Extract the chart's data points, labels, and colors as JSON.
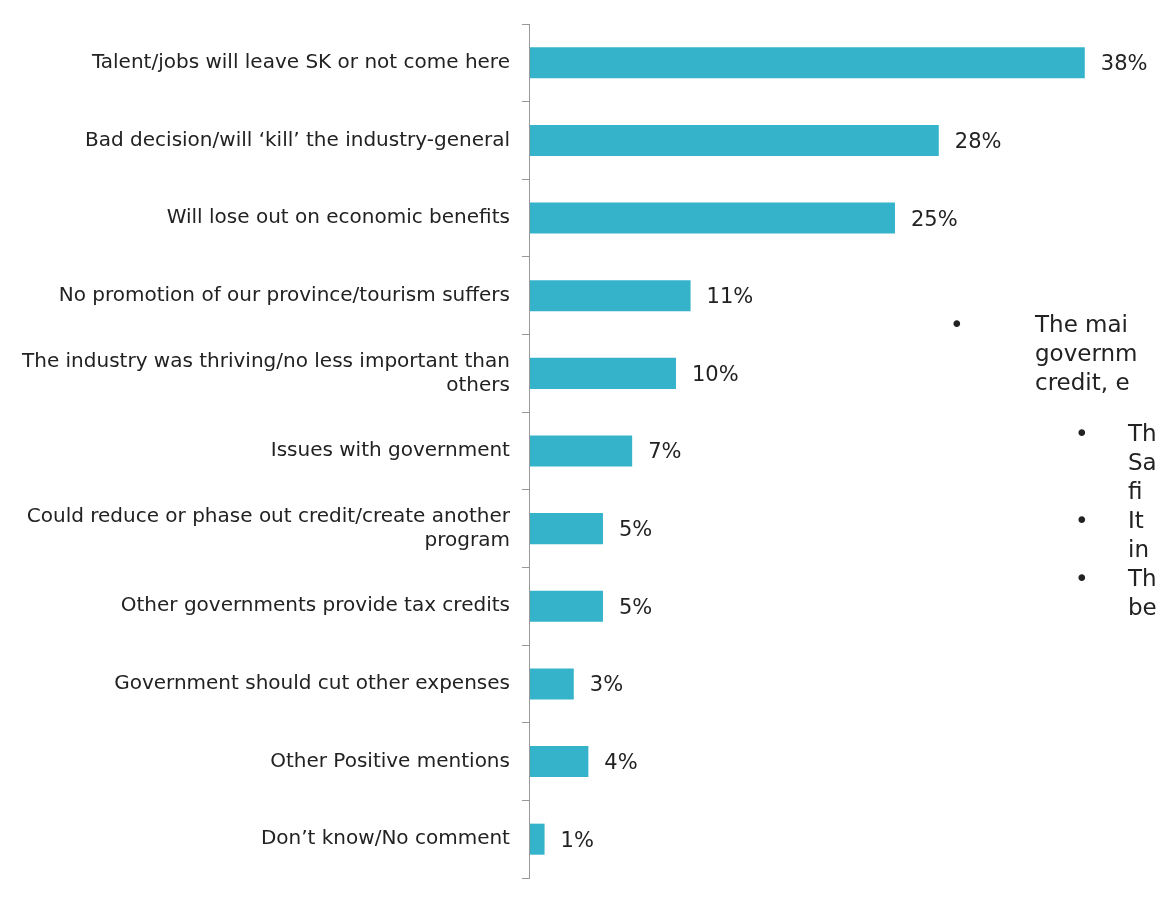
{
  "chart_data": {
    "type": "bar",
    "orientation": "horizontal",
    "categories": [
      "Talent/jobs will leave SK or not come here",
      "Bad decision/will ‘kill’ the industry-general",
      "Will lose out on economic benefits",
      "No promotion of our province/tourism suffers",
      "The industry was thriving/no less important than others",
      "Issues with government",
      "Could reduce or phase out credit/create another program",
      "Other governments provide tax credits",
      "Government should cut other expenses",
      "Other Positive mentions",
      "Don’t know/No comment"
    ],
    "values": [
      38,
      28,
      25,
      11,
      10,
      7,
      5,
      5,
      3,
      4,
      1
    ],
    "value_labels": [
      "38%",
      "28%",
      "25%",
      "11%",
      "10%",
      "7%",
      "5%",
      "5%",
      "3%",
      "4%",
      "1%"
    ],
    "color": "#35b3cb",
    "tick_labels": "y",
    "legend": false,
    "grid": false,
    "annotations": [
      "•\tThe mai\ngovernm\ncredit, e",
      "•\tTh\nSa\nfi",
      "•\tIt\nin",
      "•\tTh\nbe"
    ]
  }
}
